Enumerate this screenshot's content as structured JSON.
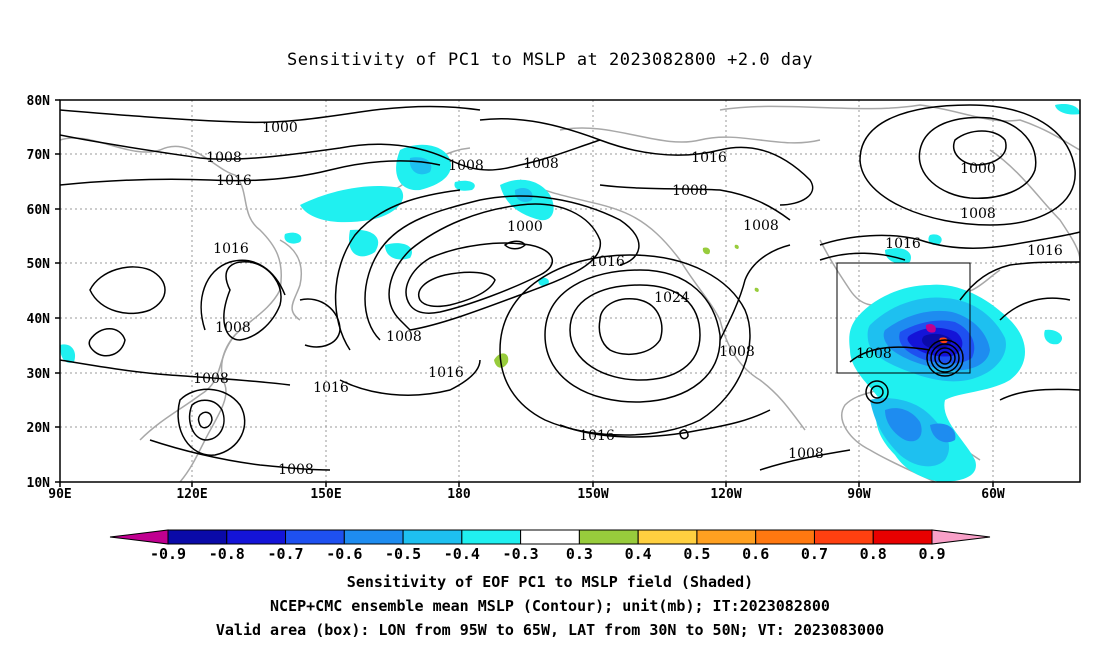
{
  "title": "Sensitivity of PC1 to MSLP at 2023082800 +2.0 day",
  "axes": {
    "lat_labels": [
      "80N",
      "70N",
      "60N",
      "50N",
      "40N",
      "30N",
      "20N",
      "10N"
    ],
    "lon_labels": [
      "90E",
      "120E",
      "150E",
      "180",
      "150W",
      "120W",
      "90W",
      "60W"
    ]
  },
  "contour_labels": [
    "1000",
    "1008",
    "1016",
    "1008",
    "1008",
    "1016",
    "1008",
    "1000",
    "1008",
    "1016",
    "1016",
    "1000",
    "1008",
    "1016",
    "1016",
    "1008",
    "1008",
    "1016",
    "1024",
    "1008",
    "1016",
    "1016",
    "1008",
    "1008",
    "1008",
    "1008"
  ],
  "colorbar": {
    "ticks": [
      "-0.9",
      "-0.8",
      "-0.7",
      "-0.6",
      "-0.5",
      "-0.4",
      "-0.3",
      "0.3",
      "0.4",
      "0.5",
      "0.6",
      "0.7",
      "0.8",
      "0.9"
    ],
    "colors": [
      "#c00090",
      "#0a0aa8",
      "#1414d8",
      "#1e50f0",
      "#1e8cf0",
      "#1ec0f0",
      "#20f0f0",
      "#ffffff",
      "#98cc3c",
      "#ffd040",
      "#ffa020",
      "#ff7810",
      "#ff4010",
      "#e80000",
      "#f8a0c8"
    ]
  },
  "footer": {
    "line1": "Sensitivity of EOF PC1 to MSLP field (Shaded)",
    "line2": "NCEP+CMC ensemble mean MSLP (Contour); unit(mb); IT:2023082800",
    "line3": "Valid area (box): LON from 95W to 65W, LAT from 30N to 50N; VT: 2023083000"
  }
}
